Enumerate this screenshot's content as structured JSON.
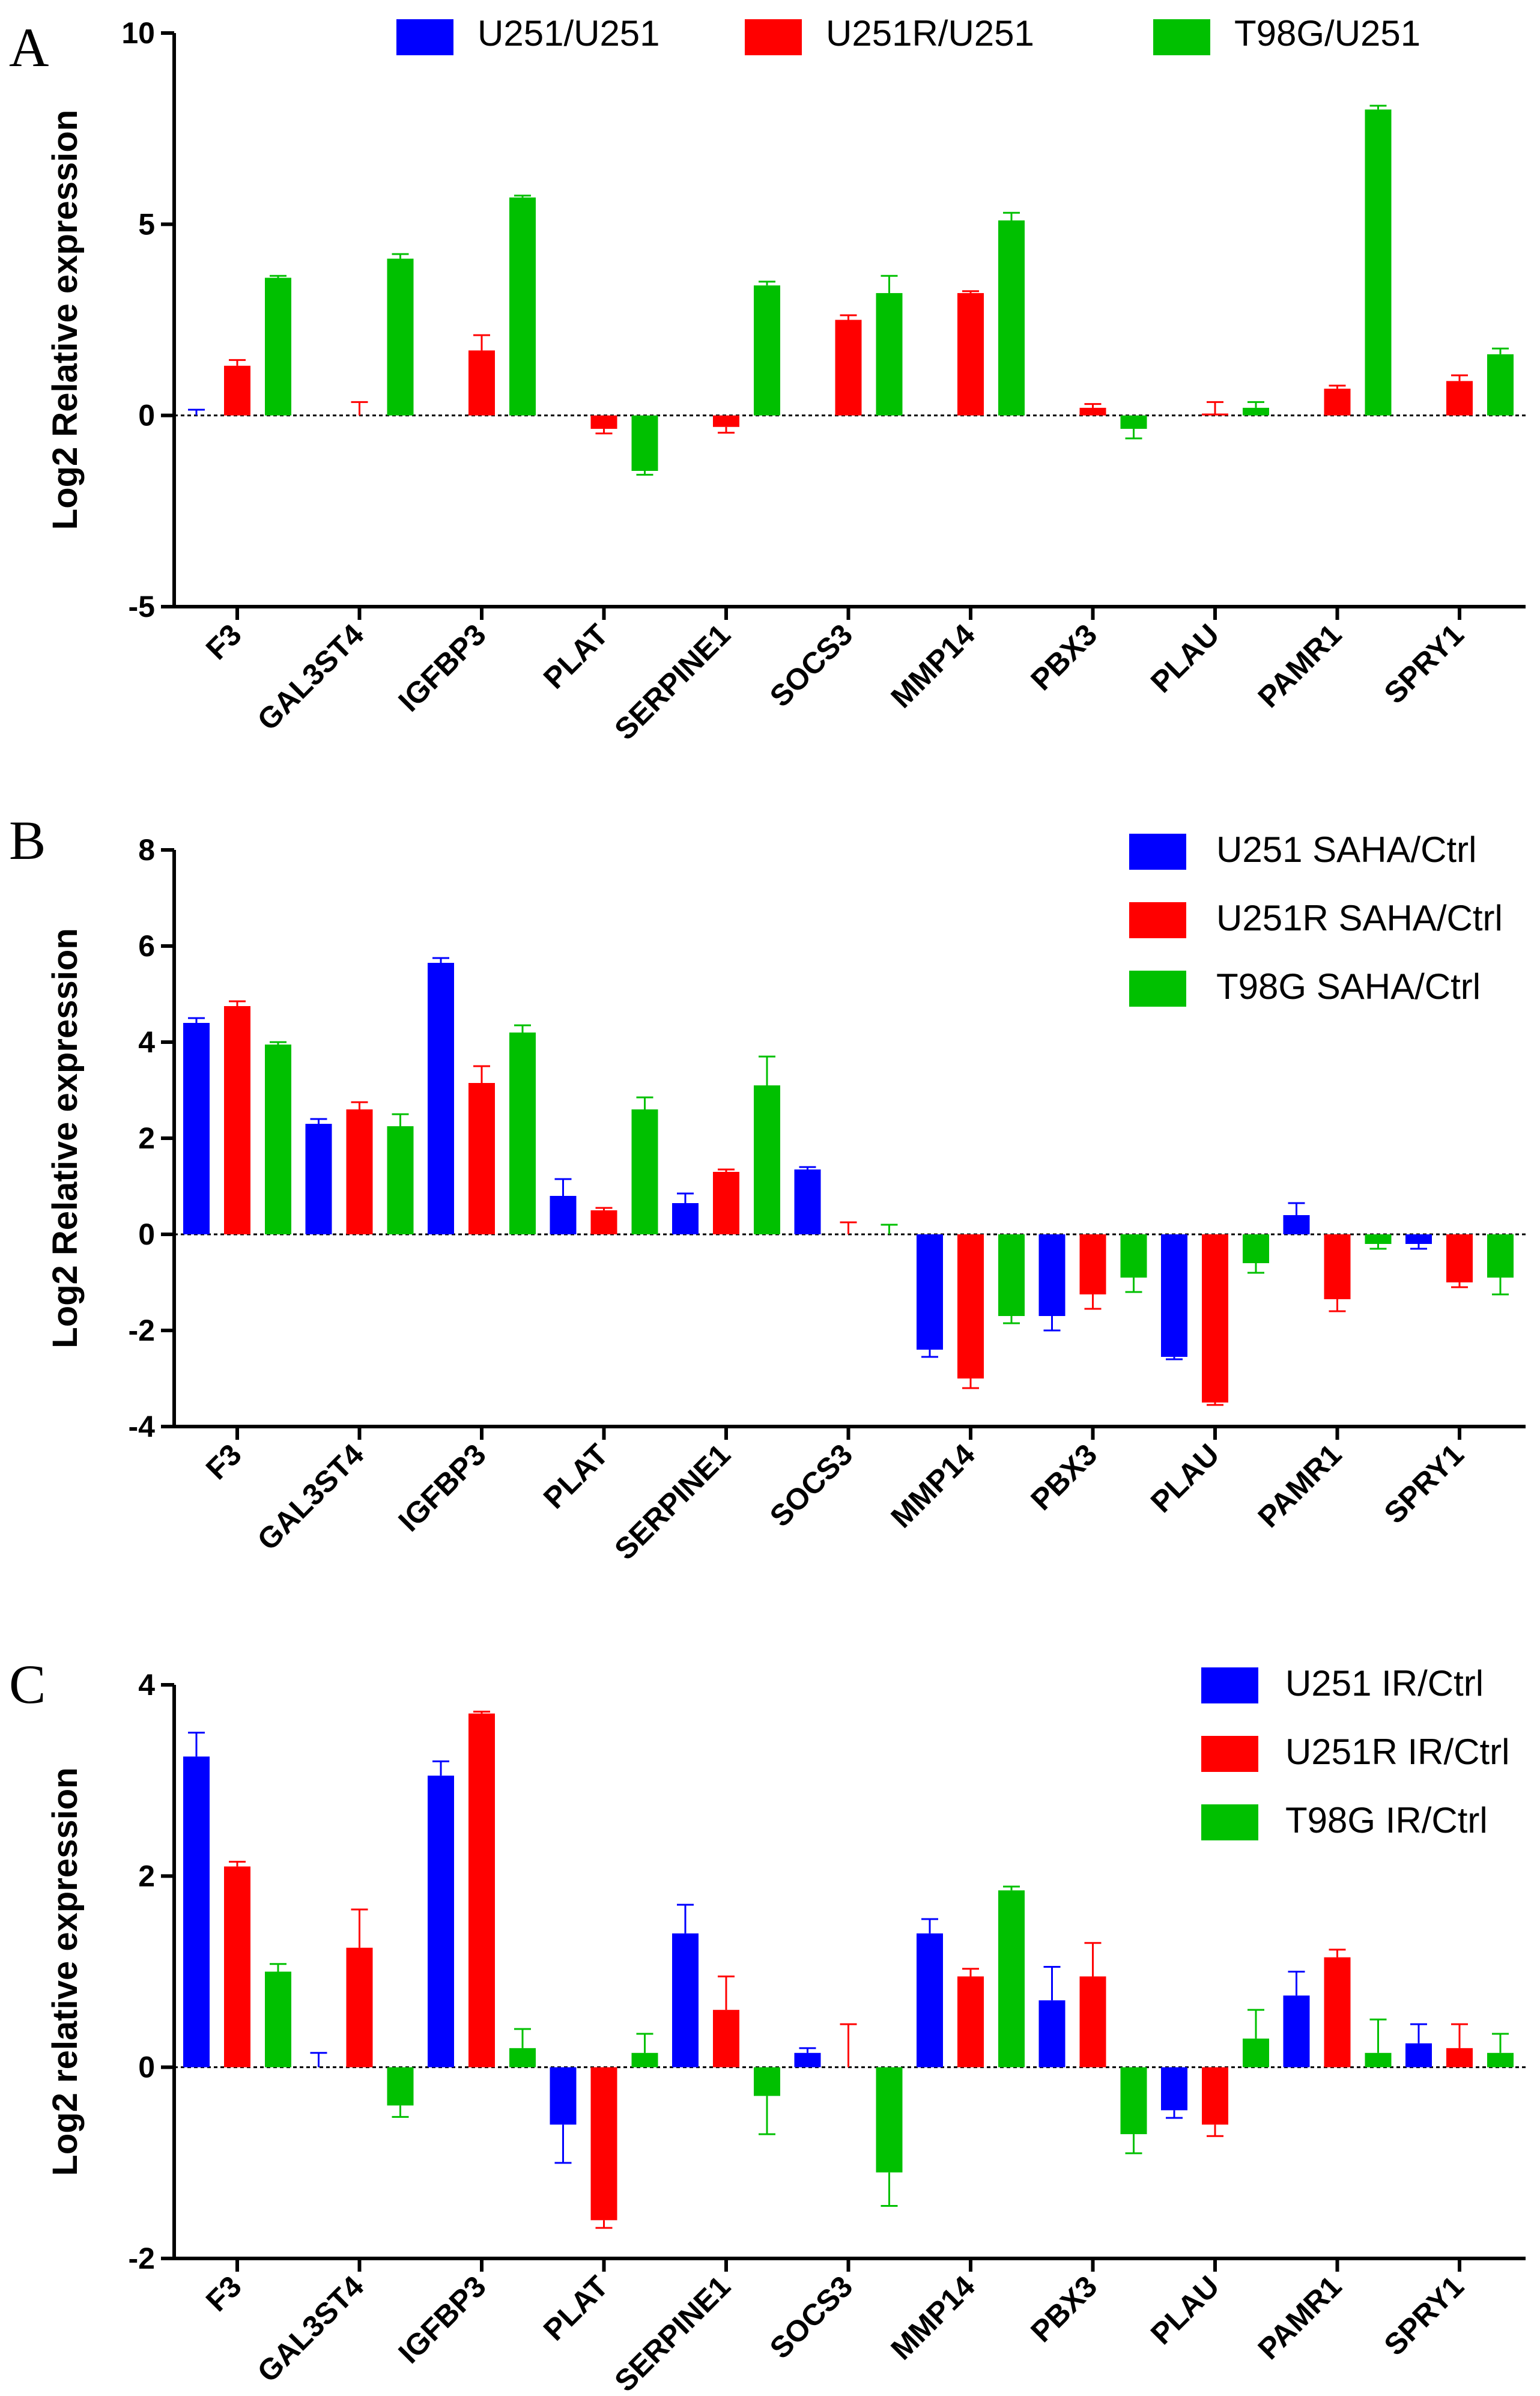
{
  "panels": [
    {
      "letter": "A",
      "chart_data": {
        "type": "bar",
        "ylabel": "Log2 Relative expression",
        "ylim": [
          -5,
          10
        ],
        "yticks": [
          -5,
          0,
          5,
          10
        ],
        "categories": [
          "F3",
          "GAL3ST4",
          "IGFBP3",
          "PLAT",
          "SERPINE1",
          "SOCS3",
          "MMP14",
          "PBX3",
          "PLAU",
          "PAMR1",
          "SPRY1"
        ],
        "legend_position": "top",
        "series": [
          {
            "name": "U251/U251",
            "color": "#0000FF",
            "values": [
              0,
              0,
              0,
              0,
              0,
              0,
              0,
              0,
              0,
              0,
              0
            ],
            "errors": [
              0.15,
              0,
              0,
              0,
              0,
              0,
              0,
              0,
              0,
              0,
              0
            ]
          },
          {
            "name": "U251R/U251",
            "color": "#FF0000",
            "values": [
              1.3,
              0,
              1.7,
              -0.35,
              -0.3,
              2.5,
              3.2,
              0.2,
              0.05,
              0.7,
              0.9
            ],
            "errors": [
              0.15,
              0.35,
              0.4,
              0.12,
              0.15,
              0.12,
              0.05,
              0.1,
              0.3,
              0.08,
              0.15
            ]
          },
          {
            "name": "T98G/U251",
            "color": "#00C000",
            "values": [
              3.6,
              4.1,
              5.7,
              -1.45,
              3.4,
              3.2,
              5.1,
              -0.35,
              0.2,
              8.0,
              1.6
            ]
          }
        ],
        "series_errors_green": [
          0.05,
          0.12,
          0.05,
          0.1,
          0.1,
          0.45,
          0.2,
          0.25,
          0.15,
          0.1,
          0.15
        ]
      }
    },
    {
      "letter": "B",
      "chart_data": {
        "type": "bar",
        "ylabel": "Log2 Relative expression",
        "ylim": [
          -4,
          8
        ],
        "yticks": [
          -4,
          -2,
          0,
          2,
          4,
          6,
          8
        ],
        "categories": [
          "F3",
          "GAL3ST4",
          "IGFBP3",
          "PLAT",
          "SERPINE1",
          "SOCS3",
          "MMP14",
          "PBX3",
          "PLAU",
          "PAMR1",
          "SPRY1"
        ],
        "legend_position": "top-right",
        "series": [
          {
            "name": "U251 SAHA/Ctrl",
            "color": "#0000FF",
            "values": [
              4.4,
              2.3,
              5.65,
              0.8,
              0.65,
              1.35,
              -2.4,
              -1.7,
              -2.55,
              0.4,
              -0.2
            ],
            "errors": [
              0.1,
              0.1,
              0.1,
              0.35,
              0.2,
              0.05,
              0.15,
              0.3,
              0.05,
              0.25,
              0.1
            ]
          },
          {
            "name": "U251R SAHA/Ctrl",
            "color": "#FF0000",
            "values": [
              4.75,
              2.6,
              3.15,
              0.5,
              1.3,
              0,
              -3.0,
              -1.25,
              -3.5,
              -1.35,
              -1.0
            ],
            "errors": [
              0.1,
              0.15,
              0.35,
              0.05,
              0.05,
              0.25,
              0.2,
              0.3,
              0.05,
              0.25,
              0.1
            ]
          },
          {
            "name": "T98G SAHA/Ctrl",
            "color": "#00C000",
            "values": [
              3.95,
              2.25,
              4.2,
              2.6,
              3.1,
              0,
              -1.7,
              -0.9,
              -0.6,
              -0.2,
              -0.9
            ],
            "errors": [
              0.05,
              0.25,
              0.15,
              0.25,
              0.6,
              0.2,
              0.15,
              0.3,
              0.2,
              0.1,
              0.35
            ]
          }
        ]
      }
    },
    {
      "letter": "C",
      "chart_data": {
        "type": "bar",
        "ylabel": "Log2 relative expression",
        "ylim": [
          -2,
          4
        ],
        "yticks": [
          -2,
          0,
          2,
          4
        ],
        "categories": [
          "F3",
          "GAL3ST4",
          "IGFBP3",
          "PLAT",
          "SERPINE1",
          "SOCS3",
          "MMP14",
          "PBX3",
          "PLAU",
          "PAMR1",
          "SPRY1"
        ],
        "legend_position": "top-right",
        "series": [
          {
            "name": "U251 IR/Ctrl",
            "color": "#0000FF",
            "values": [
              3.25,
              0,
              3.05,
              -0.6,
              1.4,
              0.15,
              1.4,
              0.7,
              -0.45,
              0.75,
              0.25
            ],
            "errors": [
              0.25,
              0.15,
              0.15,
              0.4,
              0.3,
              0.05,
              0.15,
              0.35,
              0.08,
              0.25,
              0.2
            ]
          },
          {
            "name": "U251R IR/Ctrl",
            "color": "#FF0000",
            "values": [
              2.1,
              1.25,
              3.7,
              -1.6,
              0.6,
              0,
              0.95,
              0.95,
              -0.6,
              1.15,
              0.2
            ],
            "errors": [
              0.05,
              0.4,
              0.02,
              0.08,
              0.35,
              0.45,
              0.08,
              0.35,
              0.12,
              0.08,
              0.25
            ]
          },
          {
            "name": "T98G IR/Ctrl",
            "color": "#00C000",
            "values": [
              1.0,
              -0.4,
              0.2,
              0.15,
              -0.3,
              -1.1,
              1.85,
              -0.7,
              0.3,
              0.15,
              0.15
            ],
            "errors": [
              0.08,
              0.12,
              0.2,
              0.2,
              0.4,
              0.35,
              0.04,
              0.2,
              0.3,
              0.35,
              0.2
            ]
          }
        ]
      }
    }
  ]
}
